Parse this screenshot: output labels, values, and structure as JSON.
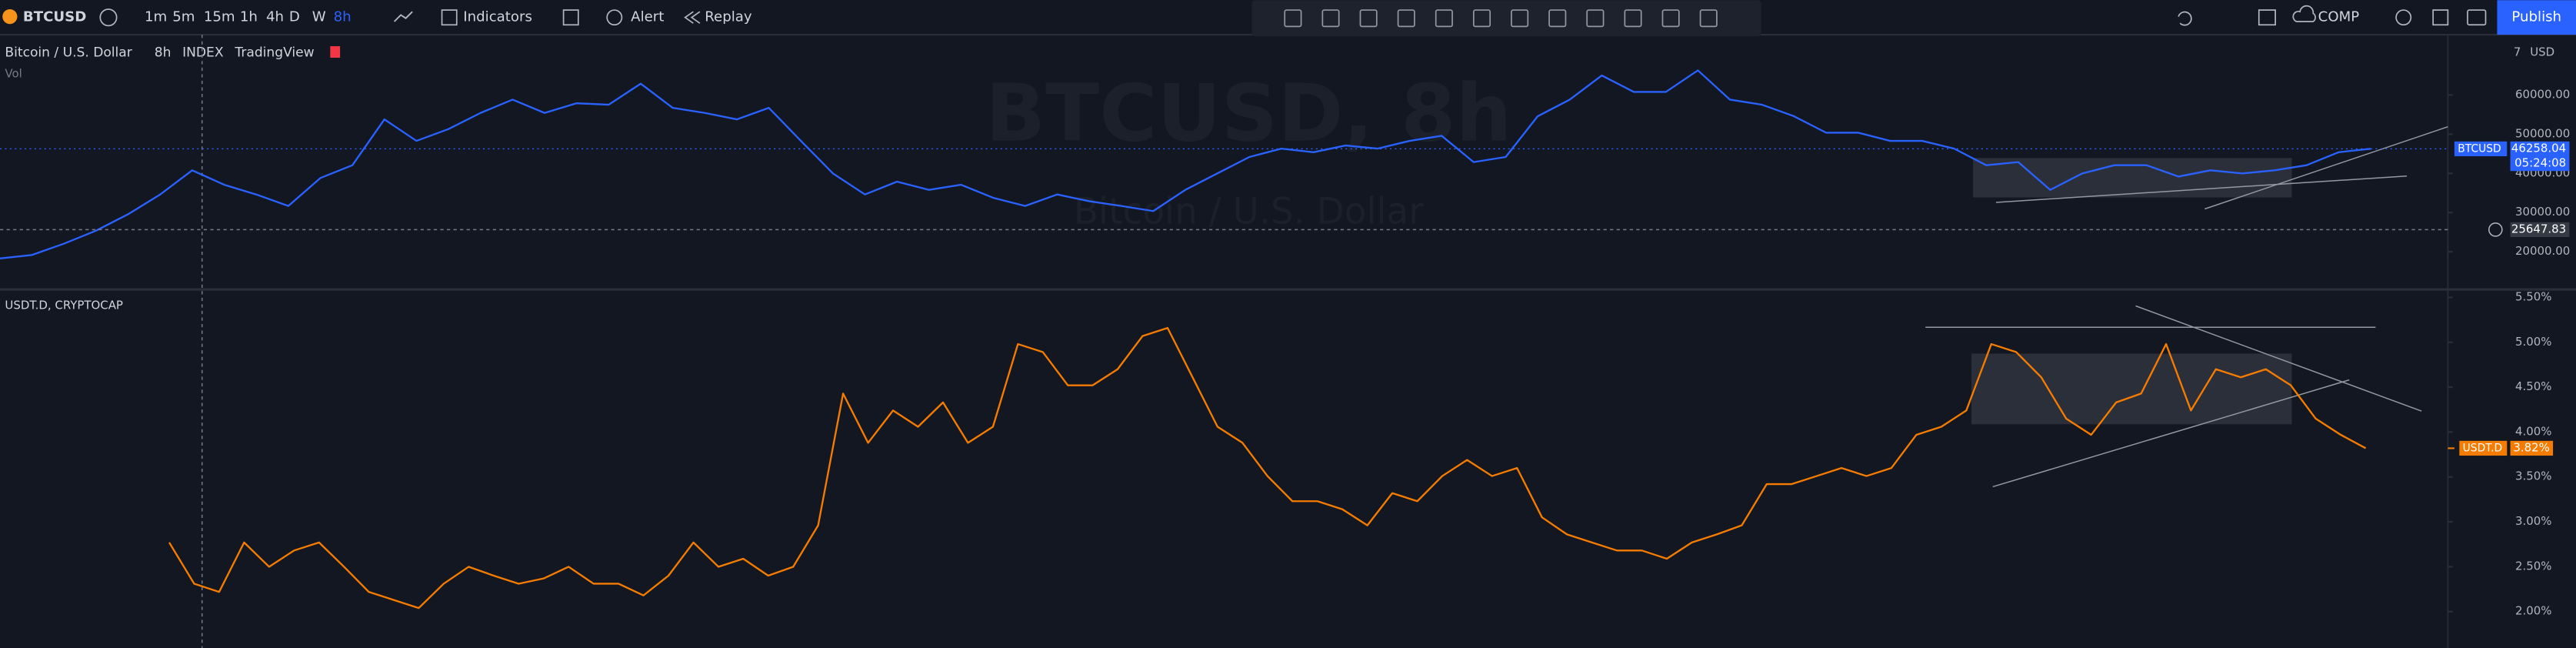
{
  "toolbar": {
    "symbol": "BTCUSD",
    "intervals": [
      "1m",
      "5m",
      "15m",
      "1h",
      "4h",
      "D",
      "W",
      "8h"
    ],
    "indicators": "Indicators",
    "alert": "Alert",
    "replay": "Replay",
    "comp": "COMP",
    "publish": "Publish"
  },
  "chart_data": [
    {
      "type": "line",
      "title": "Bitcoin / U.S. Dollar",
      "interval": "8h",
      "exchange": "INDEX",
      "source": "TradingView",
      "volume_label": "Vol",
      "watermark": "BTCUSD, 8h",
      "currency": "USD",
      "series": [
        {
          "name": "BTCUSD",
          "color": "#2962ff",
          "values": [
            18300,
            19200,
            22100,
            25400,
            29600,
            34600,
            40800,
            37100,
            34600,
            31700,
            38800,
            42100,
            53800,
            48300,
            51300,
            55400,
            58800,
            55400,
            57900,
            57500,
            62900,
            56700,
            55400,
            53800,
            56700,
            48300,
            40000,
            34600,
            37900,
            35800,
            37100,
            33800,
            31700,
            34600,
            32900,
            31700,
            30400,
            35800,
            40000,
            44200,
            46300,
            45400,
            47100,
            46300,
            48300,
            49600,
            42900,
            44200,
            54600,
            58800,
            65000,
            60800,
            60800,
            66300,
            58800,
            57500,
            54600,
            50400,
            50400,
            48300,
            48300,
            46300,
            42100,
            42900,
            35800,
            40000,
            42100,
            42100,
            39200,
            40800,
            40000,
            40800,
            42100,
            45400,
            46258.04
          ]
        }
      ],
      "last_price": 46258.04,
      "countdown": "05:24:08",
      "crosshair_price": 25647.83,
      "ylim": [
        10800,
        75800
      ],
      "yticks": [
        {
          "value": 20000,
          "label": "20000.00"
        },
        {
          "value": 30000,
          "label": "30000.00"
        },
        {
          "value": 40000,
          "label": "40000.00"
        },
        {
          "value": 50000,
          "label": "50000.00"
        },
        {
          "value": 60000,
          "label": "60000.00"
        }
      ]
    },
    {
      "type": "line",
      "title": "USDT.D, CRYPTOCAP",
      "series": [
        {
          "name": "USDT.D",
          "color": "#f57c00",
          "values": [
            2.77,
            2.31,
            2.22,
            2.77,
            2.5,
            2.68,
            2.77,
            2.5,
            2.22,
            2.13,
            2.04,
            2.31,
            2.5,
            2.4,
            2.31,
            2.37,
            2.5,
            2.31,
            2.31,
            2.18,
            2.4,
            2.77,
            2.5,
            2.59,
            2.4,
            2.5,
            2.96,
            4.43,
            3.88,
            4.24,
            4.06,
            4.33,
            3.88,
            4.06,
            4.98,
            4.89,
            4.52,
            4.52,
            4.7,
            5.07,
            5.16,
            4.61,
            4.06,
            3.88,
            3.51,
            3.23,
            3.23,
            3.14,
            2.96,
            3.32,
            3.23,
            3.51,
            3.69,
            3.51,
            3.6,
            3.05,
            2.86,
            2.77,
            2.68,
            2.68,
            2.59,
            2.77,
            2.86,
            2.96,
            3.42,
            3.42,
            3.51,
            3.6,
            3.51,
            3.6,
            3.97,
            4.06,
            4.24,
            4.98,
            4.89,
            4.61,
            4.15,
            3.97,
            4.33,
            4.43,
            4.98,
            4.24,
            4.7,
            4.61,
            4.7,
            4.52,
            4.15,
            3.97,
            3.82
          ]
        }
      ],
      "last_value": {
        "value": 3.82,
        "label": "3.82%"
      },
      "ylim": [
        1.67,
        5.57
      ],
      "yticks": [
        {
          "value": 2,
          "label": "2.00%"
        },
        {
          "value": 2.5,
          "label": "2.50%"
        },
        {
          "value": 3,
          "label": "3.00%"
        },
        {
          "value": 3.5,
          "label": "3.50%"
        },
        {
          "value": 4,
          "label": "4.00%"
        },
        {
          "value": 4.5,
          "label": "4.50%"
        },
        {
          "value": 5,
          "label": "5.00%"
        },
        {
          "value": 5.5,
          "label": "5.50%"
        }
      ]
    }
  ]
}
